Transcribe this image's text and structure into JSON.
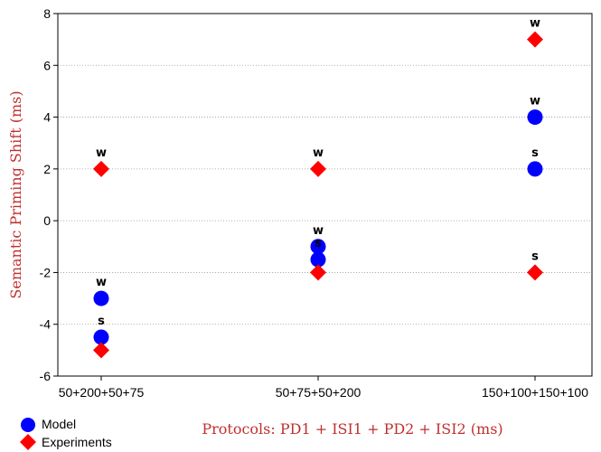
{
  "chart_data": {
    "type": "scatter",
    "xlabel": "Protocols: PD1 + ISI1 + PD2 + ISI2 (ms)",
    "ylabel": "Semantic Priming Shift (ms)",
    "categories": [
      "50+200+50+75",
      "50+75+50+200",
      "150+100+150+100"
    ],
    "ylim": [
      -6,
      8
    ],
    "yticks": [
      -6,
      -4,
      -2,
      0,
      2,
      4,
      6,
      8
    ],
    "grid": "horizontal-dotted",
    "legend_position": "bottom-left",
    "series": [
      {
        "name": "Model",
        "marker": "circle",
        "color": "#0000ff",
        "points": [
          {
            "category": "50+200+50+75",
            "y": -3.0,
            "label": "w"
          },
          {
            "category": "50+200+50+75",
            "y": -4.5,
            "label": "s"
          },
          {
            "category": "50+75+50+200",
            "y": -1.0,
            "label": "w"
          },
          {
            "category": "50+75+50+200",
            "y": -1.5,
            "label": "s"
          },
          {
            "category": "150+100+150+100",
            "y": 4.0,
            "label": "w"
          },
          {
            "category": "150+100+150+100",
            "y": 2.0,
            "label": "s"
          }
        ]
      },
      {
        "name": "Experiments",
        "marker": "diamond",
        "color": "#ff0000",
        "points": [
          {
            "category": "50+200+50+75",
            "y": 2.0,
            "label": "w"
          },
          {
            "category": "50+200+50+75",
            "y": -5.0,
            "label": ""
          },
          {
            "category": "50+75+50+200",
            "y": 2.0,
            "label": "w"
          },
          {
            "category": "50+75+50+200",
            "y": -2.0,
            "label": ""
          },
          {
            "category": "150+100+150+100",
            "y": 7.0,
            "label": "w"
          },
          {
            "category": "150+100+150+100",
            "y": -2.0,
            "label": "s"
          }
        ]
      }
    ]
  },
  "colors": {
    "axis_title": "#c0302e",
    "model": "#0000ff",
    "experiments": "#ff0000"
  }
}
